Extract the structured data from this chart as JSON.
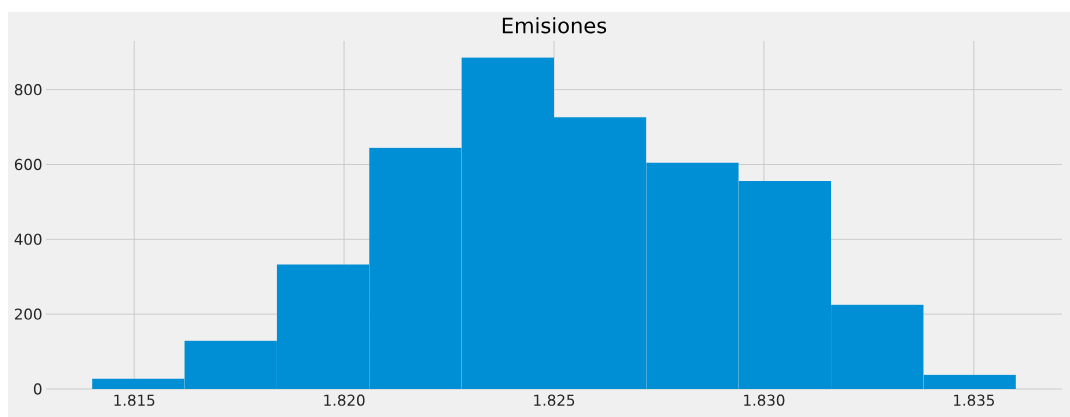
{
  "chart_data": {
    "type": "histogram",
    "title": "Emisiones",
    "bins": [
      1.814,
      1.8162,
      1.8184,
      1.8206,
      1.8228,
      1.825,
      1.8272,
      1.8294,
      1.8316,
      1.8338,
      1.836
    ],
    "values": [
      28,
      129,
      333,
      645,
      886,
      726,
      605,
      556,
      225,
      38
    ],
    "color": "#008fd5",
    "xlim": [
      1.8129,
      1.8371
    ],
    "xticks": [
      {
        "value": 1.815,
        "label": "1.815"
      },
      {
        "value": 1.82,
        "label": "1.820"
      },
      {
        "value": 1.825,
        "label": "1.825"
      },
      {
        "value": 1.83,
        "label": "1.830"
      },
      {
        "value": 1.835,
        "label": "1.835"
      }
    ],
    "ylim": [
      0,
      930
    ],
    "yticks": [
      0,
      200,
      400,
      600,
      800
    ],
    "grid": true
  }
}
